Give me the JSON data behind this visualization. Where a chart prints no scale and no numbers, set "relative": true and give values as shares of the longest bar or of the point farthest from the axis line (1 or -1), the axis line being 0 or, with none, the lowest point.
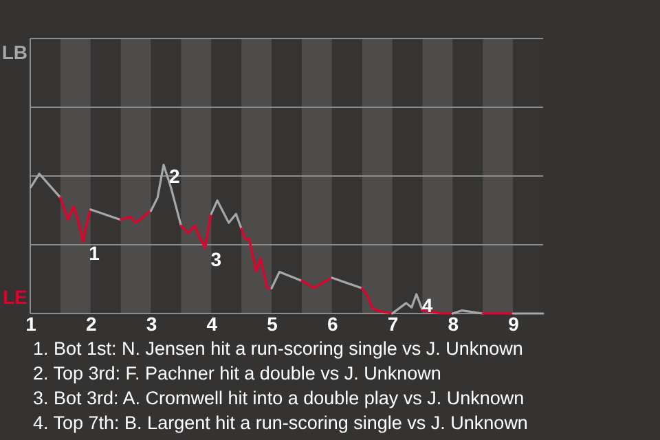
{
  "chart_data": {
    "type": "line",
    "relative": true,
    "xlim": [
      1,
      9.5
    ],
    "xticks": [
      1,
      2,
      3,
      4,
      5,
      6,
      7,
      8,
      9
    ],
    "ref_lines": [
      {
        "axis": "y",
        "value": 0.4625,
        "color": "#8c8c8c"
      },
      {
        "axis": "y",
        "value": 0.925,
        "color": "#8c8c8c"
      },
      {
        "axis": "y",
        "value": 1.3875,
        "color": "#8c8c8c"
      },
      {
        "axis": "y",
        "value": 1.85,
        "color": "#8c8c8c"
      }
    ],
    "line_style": "solid",
    "series": [
      {
        "name": "LB",
        "color": "#a3a8ab",
        "x": [
          1.01,
          1.15,
          1.5
        ],
        "values": [
          0.85,
          0.94,
          0.78
        ]
      },
      {
        "name": "LE",
        "color": "#e4002b",
        "x": [
          1.5,
          1.63,
          1.72,
          1.78,
          1.88,
          1.92,
          2
        ],
        "values": [
          0.78,
          0.63,
          0.72,
          0.65,
          0.48,
          0.57,
          0.7
        ]
      },
      {
        "color": "#a3a8ab",
        "x": [
          2,
          2.5
        ],
        "values": [
          0.7,
          0.63
        ]
      },
      {
        "color": "#e4002b",
        "x": [
          2.5,
          2.65,
          2.76,
          3
        ],
        "values": [
          0.63,
          0.65,
          0.61,
          0.69
        ]
      },
      {
        "color": "#a3a8ab",
        "x": [
          3,
          3.11,
          3.21,
          3.33,
          3.5
        ],
        "values": [
          0.69,
          0.78,
          1,
          0.85,
          0.59
        ]
      },
      {
        "color": "#e4002b",
        "x": [
          3.5,
          3.62,
          3.73,
          3.8,
          3.9,
          4
        ],
        "values": [
          0.59,
          0.54,
          0.59,
          0.52,
          0.44,
          0.67
        ]
      },
      {
        "color": "#a3a8ab",
        "x": [
          4,
          4.1,
          4.29,
          4.41,
          4.5
        ],
        "values": [
          0.67,
          0.76,
          0.61,
          0.67,
          0.57
        ]
      },
      {
        "color": "#e4002b",
        "x": [
          4.5,
          4.57,
          4.63,
          4.75,
          4.82,
          4.93,
          5
        ],
        "values": [
          0.57,
          0.5,
          0.5,
          0.28,
          0.37,
          0.17,
          0.17
        ]
      },
      {
        "color": "#a3a8ab",
        "x": [
          5,
          5.13,
          5.5
        ],
        "values": [
          0.17,
          0.28,
          0.22
        ]
      },
      {
        "color": "#e4002b",
        "x": [
          5.5,
          5.71,
          6
        ],
        "values": [
          0.22,
          0.17,
          0.24
        ]
      },
      {
        "color": "#a3a8ab",
        "x": [
          6,
          6.5
        ],
        "values": [
          0.24,
          0.17
        ]
      },
      {
        "color": "#e4002b",
        "x": [
          6.5,
          6.54,
          6.6,
          6.67,
          6.74,
          7
        ],
        "values": [
          0.17,
          0.15,
          0.11,
          0.04,
          0.02,
          0
        ]
      },
      {
        "color": "#a3a8ab",
        "x": [
          7,
          7.13,
          7.23,
          7.32,
          7.4,
          7.5
        ],
        "values": [
          0,
          0.04,
          0.07,
          0.04,
          0.13,
          0.02
        ]
      },
      {
        "color": "#e4002b",
        "x": [
          7.5,
          7.84,
          8
        ],
        "values": [
          0.02,
          0,
          0
        ]
      },
      {
        "color": "#a3a8ab",
        "x": [
          8,
          8.15,
          8.5
        ],
        "values": [
          0,
          0.02,
          0
        ]
      },
      {
        "color": "#e4002b",
        "x": [
          8.5,
          9
        ],
        "values": [
          0,
          0
        ]
      },
      {
        "color": "#a3a8ab",
        "x": [
          9,
          9.5
        ],
        "values": [
          0,
          0
        ]
      }
    ],
    "bands": [
      {
        "axis": "x",
        "from": 1.5,
        "to": 2,
        "color": "#4d4c4b"
      },
      {
        "axis": "x",
        "from": 2.5,
        "to": 3,
        "color": "#4d4c4b"
      },
      {
        "axis": "x",
        "from": 3.5,
        "to": 4,
        "color": "#4d4c4b"
      },
      {
        "axis": "x",
        "from": 4.5,
        "to": 5,
        "color": "#4d4c4b"
      },
      {
        "axis": "x",
        "from": 5.5,
        "to": 6,
        "color": "#4d4c4b"
      },
      {
        "axis": "x",
        "from": 6.5,
        "to": 7,
        "color": "#4d4c4b"
      },
      {
        "axis": "x",
        "from": 7.5,
        "to": 8,
        "color": "#4d4c4b"
      },
      {
        "axis": "x",
        "from": 8.5,
        "to": 9,
        "color": "#4d4c4b"
      }
    ],
    "annotations": [
      {
        "text": "1",
        "x": 1.88,
        "y": 0.48
      },
      {
        "text": "2",
        "x": 3.21,
        "y": 1
      },
      {
        "text": "3",
        "x": 3.9,
        "y": 0.44
      },
      {
        "text": "4",
        "x": 7.4,
        "y": 0.13
      },
      "1. Bot 1st: N. Jensen hit a run-scoring single vs J. Unknown",
      "2. Top 3rd: F. Pachner hit a double vs J. Unknown",
      "3. Bot 3rd: A. Cromwell hit into a double play vs J. Unknown",
      "4. Top 7th: B. Largent hit a run-scoring single vs J. Unknown"
    ]
  }
}
